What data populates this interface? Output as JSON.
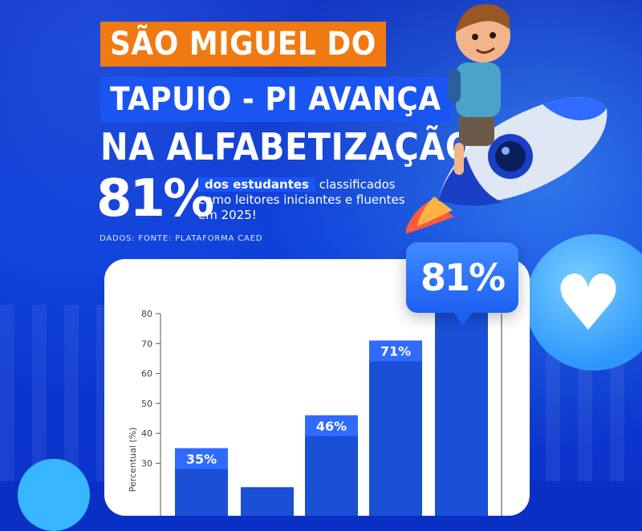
{
  "headline": {
    "line1": "SÃO MIGUEL DO",
    "line2": "TAPUIO - PI AVANÇA",
    "line3": "NA ALFABETIZAÇÃO"
  },
  "highlight": {
    "percent": "81%",
    "word1": "dos",
    "word2": "estudantes",
    "rest": "classificados como leitores iniciantes e fluentes em 2025!"
  },
  "source": "DADOS: FONTE: PLATAFORMA CAED",
  "bubble_label": "81%",
  "colors": {
    "orange": "#f07a12",
    "blue": "#1a55f2",
    "bar": "#1a4fd6",
    "bar_label": "#2f6bff"
  },
  "chart_data": {
    "type": "bar",
    "title": "",
    "xlabel": "",
    "ylabel": "Percentual (%)",
    "ylim": [
      20,
      80
    ],
    "yticks": [
      30,
      40,
      50,
      60,
      70,
      80
    ],
    "categories": [
      "",
      "",
      "",
      "",
      ""
    ],
    "values": [
      35,
      22,
      46,
      71,
      81
    ],
    "data_labels": [
      "35%",
      "",
      "46%",
      "71%",
      ""
    ],
    "grid": false
  }
}
